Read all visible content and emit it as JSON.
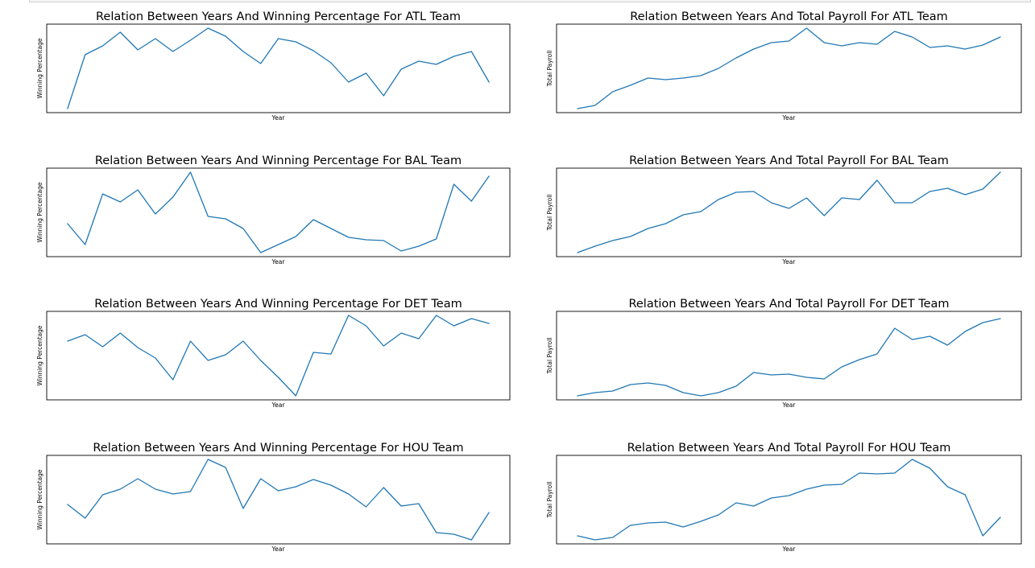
{
  "chart_data": [
    {
      "type": "line",
      "title": "Relation Between Years And Winning Percentage For ATL Team",
      "xlabel": "Year",
      "ylabel": "Winning Percentage",
      "series": [
        {
          "name": "ATL",
          "values": [
            0.0,
            0.67,
            0.78,
            0.95,
            0.73,
            0.87,
            0.71,
            0.85,
            1.0,
            0.9,
            0.71,
            0.56,
            0.87,
            0.83,
            0.72,
            0.57,
            0.33,
            0.44,
            0.16,
            0.49,
            0.59,
            0.55,
            0.65,
            0.71,
            0.33
          ]
        }
      ],
      "ylim": [
        -0.05,
        1.05
      ]
    },
    {
      "type": "line",
      "title": "Relation Between Years And Total Payroll For ATL Team",
      "xlabel": "Year",
      "ylabel": "Total Payroll",
      "series": [
        {
          "name": "ATL",
          "values": [
            0.0,
            0.04,
            0.21,
            0.29,
            0.38,
            0.36,
            0.38,
            0.41,
            0.5,
            0.63,
            0.74,
            0.82,
            0.84,
            1.0,
            0.82,
            0.78,
            0.82,
            0.8,
            0.96,
            0.89,
            0.76,
            0.78,
            0.74,
            0.79,
            0.89
          ]
        }
      ],
      "ylim": [
        -0.05,
        1.05
      ]
    },
    {
      "type": "line",
      "title": "Relation Between Years And Winning Percentage For BAL Team",
      "xlabel": "Year",
      "ylabel": "Winning Percentage",
      "series": [
        {
          "name": "BAL",
          "values": [
            0.36,
            0.1,
            0.73,
            0.63,
            0.78,
            0.48,
            0.69,
            1.0,
            0.45,
            0.42,
            0.3,
            0.0,
            0.1,
            0.2,
            0.41,
            0.3,
            0.19,
            0.16,
            0.15,
            0.02,
            0.08,
            0.17,
            0.85,
            0.64,
            0.95
          ]
        }
      ],
      "ylim": [
        -0.05,
        1.05
      ]
    },
    {
      "type": "line",
      "title": "Relation Between Years And Total Payroll For BAL Team",
      "xlabel": "Year",
      "ylabel": "Total Payroll",
      "series": [
        {
          "name": "BAL",
          "values": [
            0.0,
            0.08,
            0.15,
            0.2,
            0.3,
            0.36,
            0.47,
            0.51,
            0.66,
            0.75,
            0.76,
            0.62,
            0.55,
            0.68,
            0.46,
            0.68,
            0.66,
            0.9,
            0.62,
            0.62,
            0.76,
            0.8,
            0.72,
            0.79,
            1.0
          ]
        }
      ],
      "ylim": [
        -0.05,
        1.05
      ]
    },
    {
      "type": "line",
      "title": "Relation Between Years And Winning Percentage For DET Team",
      "xlabel": "Year",
      "ylabel": "Winning Percentage",
      "series": [
        {
          "name": "DET",
          "values": [
            0.68,
            0.76,
            0.61,
            0.78,
            0.6,
            0.47,
            0.2,
            0.68,
            0.44,
            0.51,
            0.68,
            0.44,
            0.23,
            0.0,
            0.54,
            0.52,
            1.0,
            0.87,
            0.62,
            0.78,
            0.71,
            1.0,
            0.87,
            0.96,
            0.9
          ]
        }
      ],
      "ylim": [
        -0.05,
        1.05
      ]
    },
    {
      "type": "line",
      "title": "Relation Between Years And Total Payroll For DET Team",
      "xlabel": "Year",
      "ylabel": "Total Payroll",
      "series": [
        {
          "name": "DET",
          "values": [
            0.0,
            0.04,
            0.06,
            0.14,
            0.16,
            0.13,
            0.04,
            0.0,
            0.04,
            0.12,
            0.29,
            0.26,
            0.27,
            0.23,
            0.21,
            0.36,
            0.45,
            0.52,
            0.84,
            0.7,
            0.74,
            0.63,
            0.8,
            0.91,
            0.96
          ]
        }
      ],
      "ylim": [
        -0.05,
        1.05
      ]
    },
    {
      "type": "line",
      "title": "Relation Between Years And Winning Percentage For HOU Team",
      "xlabel": "Year",
      "ylabel": "Winning Percentage",
      "series": [
        {
          "name": "HOU",
          "values": [
            0.44,
            0.27,
            0.56,
            0.63,
            0.76,
            0.63,
            0.57,
            0.6,
            1.0,
            0.9,
            0.39,
            0.76,
            0.61,
            0.66,
            0.75,
            0.68,
            0.57,
            0.41,
            0.65,
            0.42,
            0.45,
            0.09,
            0.07,
            0.0,
            0.34
          ]
        }
      ],
      "ylim": [
        -0.05,
        1.05
      ]
    },
    {
      "type": "line",
      "title": "Relation Between Years And Total Payroll For HOU Team",
      "xlabel": "Year",
      "ylabel": "Total Payroll",
      "series": [
        {
          "name": "HOU",
          "values": [
            0.05,
            0.0,
            0.03,
            0.18,
            0.21,
            0.22,
            0.16,
            0.23,
            0.31,
            0.46,
            0.42,
            0.52,
            0.55,
            0.63,
            0.68,
            0.69,
            0.83,
            0.82,
            0.83,
            1.0,
            0.89,
            0.66,
            0.56,
            0.05,
            0.28
          ]
        }
      ],
      "ylim": [
        -0.05,
        1.05
      ]
    }
  ]
}
